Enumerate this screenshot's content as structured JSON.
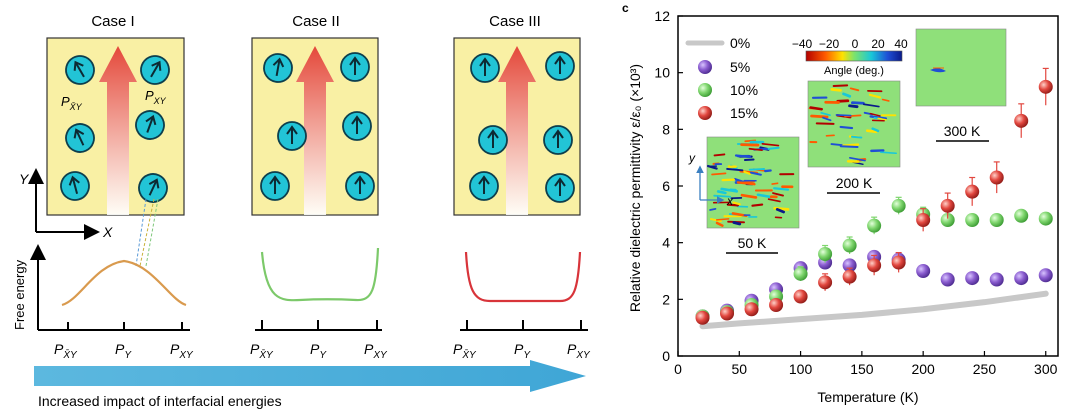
{
  "left_panel": {
    "cases": [
      "Case I",
      "Case II",
      "Case III"
    ],
    "labels": {
      "p_xbar_y": "P",
      "p_sub_xbar_y": "X̄Y",
      "p_xy_sub": "XY",
      "p_y_sub": "Y",
      "axis_y": "Y",
      "axis_x": "X",
      "free_energy": "Free energy"
    },
    "bottom_ticks": [
      "P",
      "P",
      "P"
    ],
    "bottom_tick_subs": [
      "X̄Y",
      "Y",
      "XY"
    ],
    "arrow_caption": "Increased impact of interfacial energies",
    "colors": {
      "box_fill": "#f9f0a4",
      "dipole_fill": "#22c4d6",
      "curve_case1": "#d99a4e",
      "curve_case2": "#7cc96a",
      "curve_case3": "#d8343a",
      "big_arrow": "#4fb1dc"
    }
  },
  "right_panel": {
    "chart_data": {
      "type": "scatter",
      "title": "",
      "xlabel": "Temperature (K)",
      "ylabel": "Relative dielectric permittivity ε/ε₀ (×10³)",
      "xlim": [
        0,
        310
      ],
      "ylim": [
        0,
        12
      ],
      "xticks": [
        0,
        50,
        100,
        150,
        200,
        250,
        300
      ],
      "yticks": [
        0,
        2,
        4,
        6,
        8,
        10,
        12
      ],
      "series": [
        {
          "name": "0%",
          "kind": "line",
          "color": "#c8c8c8",
          "x": [
            20,
            50,
            100,
            150,
            200,
            250,
            300
          ],
          "y": [
            1.05,
            1.15,
            1.3,
            1.45,
            1.65,
            1.9,
            2.2
          ]
        },
        {
          "name": "5%",
          "kind": "points",
          "color": "#8a5ccf",
          "x": [
            20,
            40,
            60,
            80,
            100,
            120,
            140,
            160,
            180,
            200,
            220,
            240,
            260,
            280,
            300
          ],
          "y": [
            1.4,
            1.6,
            1.95,
            2.35,
            3.1,
            3.3,
            3.2,
            3.5,
            3.4,
            3.0,
            2.7,
            2.75,
            2.7,
            2.75,
            2.85
          ],
          "err": [
            0.1,
            0.1,
            0.1,
            0.15,
            0.2,
            0.2,
            0.2,
            0.2,
            0.2,
            0.15,
            0.1,
            0.1,
            0.1,
            0.1,
            0.1
          ]
        },
        {
          "name": "10%",
          "kind": "points",
          "color": "#7fd66e",
          "x": [
            20,
            40,
            60,
            80,
            100,
            120,
            140,
            160,
            180,
            200,
            220,
            240,
            260,
            280,
            300
          ],
          "y": [
            1.4,
            1.55,
            1.8,
            2.1,
            2.9,
            3.6,
            3.9,
            4.6,
            5.3,
            5.0,
            4.8,
            4.8,
            4.8,
            4.95,
            4.85
          ],
          "err": [
            0.1,
            0.1,
            0.1,
            0.15,
            0.25,
            0.3,
            0.3,
            0.3,
            0.3,
            0.25,
            0.2,
            0.2,
            0.2,
            0.2,
            0.2
          ]
        },
        {
          "name": "15%",
          "kind": "points",
          "color": "#e2473f",
          "x": [
            20,
            40,
            60,
            80,
            100,
            120,
            140,
            160,
            180,
            200,
            220,
            240,
            260,
            280,
            300
          ],
          "y": [
            1.35,
            1.5,
            1.65,
            1.8,
            2.1,
            2.6,
            2.8,
            3.2,
            3.3,
            4.8,
            5.3,
            5.8,
            6.3,
            8.3,
            9.5
          ],
          "err": [
            0.1,
            0.1,
            0.15,
            0.15,
            0.2,
            0.3,
            0.3,
            0.35,
            0.35,
            0.4,
            0.45,
            0.5,
            0.55,
            0.6,
            0.65
          ]
        }
      ]
    },
    "legend": [
      "0%",
      "5%",
      "10%",
      "15%"
    ],
    "colorbar": {
      "ticks": [
        "−40",
        "−20",
        "0",
        "20",
        "40"
      ],
      "label": "Angle (deg.)"
    },
    "insets": [
      "50 K",
      "200 K",
      "300 K"
    ],
    "inset_axes": {
      "y": "y",
      "x": "x"
    },
    "corner_mark": "c"
  }
}
